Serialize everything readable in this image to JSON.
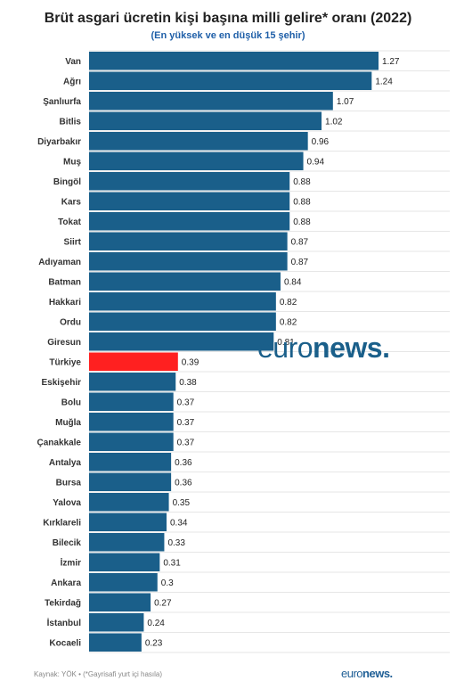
{
  "title": "Brüt asgari ücretin kişi başına milli gelire* oranı (2022)",
  "subtitle": "(En yüksek ve en düşük 15 şehir)",
  "source": "Kaynak: YÖK • (*Gayrisafi yurt içi hasıla)",
  "logo": {
    "part1": "euro",
    "part2": "news",
    "dot": "."
  },
  "colors": {
    "bar": "#1a5f8a",
    "highlight": "#ff2020",
    "grid": "#e6e6e6",
    "accent": "#1f5fa8"
  },
  "chart_data": {
    "type": "bar",
    "orientation": "horizontal",
    "title": "Brüt asgari ücretin kişi başına milli gelire* oranı (2022)",
    "subtitle": "(En yüksek ve en düşük 15 şehir)",
    "categories": [
      "Van",
      "Ağrı",
      "Şanlıurfa",
      "Bitlis",
      "Diyarbakır",
      "Muş",
      "Bingöl",
      "Kars",
      "Tokat",
      "Siirt",
      "Adıyaman",
      "Batman",
      "Hakkari",
      "Ordu",
      "Giresun",
      "Türkiye",
      "Eskişehir",
      "Bolu",
      "Muğla",
      "Çanakkale",
      "Antalya",
      "Bursa",
      "Yalova",
      "Kırklareli",
      "Bilecik",
      "İzmir",
      "Ankara",
      "Tekirdağ",
      "İstanbul",
      "Kocaeli"
    ],
    "values": [
      "1.27",
      "1.24",
      "1.07",
      "1.02",
      "0.96",
      "0.94",
      "0.88",
      "0.88",
      "0.88",
      "0.87",
      "0.87",
      "0.84",
      "0.82",
      "0.82",
      "0.81",
      "0.39",
      "0.38",
      "0.37",
      "0.37",
      "0.37",
      "0.36",
      "0.36",
      "0.35",
      "0.34",
      "0.33",
      "0.31",
      "0.3",
      "0.27",
      "0.24",
      "0.23"
    ],
    "highlight": "Türkiye",
    "xlim": [
      0,
      1.27
    ],
    "grid": true
  }
}
